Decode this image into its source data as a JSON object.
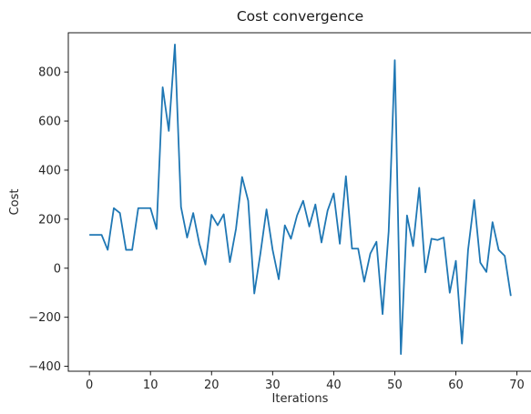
{
  "chart_data": {
    "type": "line",
    "title": "Cost convergence",
    "xlabel": "Iterations",
    "ylabel": "Cost",
    "xlim": [
      -3.45,
      72.45
    ],
    "ylim": [
      -420,
      960
    ],
    "xticks": [
      0,
      10,
      20,
      30,
      40,
      50,
      60,
      70
    ],
    "yticks": [
      -400,
      -200,
      0,
      200,
      400,
      600,
      800
    ],
    "grid": false,
    "line_color": "#1f77b4",
    "series": [
      {
        "x": [
          0,
          1,
          2,
          3,
          4,
          5,
          6,
          7,
          8,
          9,
          10,
          11,
          12,
          13,
          14,
          15,
          16,
          17,
          18,
          19,
          20,
          21,
          22,
          23,
          24,
          25,
          26,
          27,
          28,
          29,
          30,
          31,
          32,
          33,
          34,
          35,
          36,
          37,
          38,
          39,
          40,
          41,
          42,
          43,
          44,
          45,
          46,
          47,
          48,
          49,
          50,
          51,
          52,
          53,
          54,
          55,
          56,
          57,
          58,
          59,
          60,
          61,
          62,
          63,
          64,
          65,
          66,
          67,
          68,
          69
        ],
        "values": [
          136,
          136,
          136,
          75,
          245,
          225,
          75,
          75,
          245,
          245,
          245,
          160,
          738,
          560,
          912,
          250,
          125,
          225,
          100,
          15,
          218,
          175,
          220,
          25,
          160,
          372,
          275,
          -103,
          60,
          240,
          75,
          -45,
          175,
          120,
          215,
          275,
          170,
          260,
          105,
          235,
          305,
          100,
          375,
          80,
          80,
          -55,
          60,
          108,
          -187,
          150,
          848,
          -350,
          215,
          90,
          328,
          -17,
          120,
          115,
          125,
          -100,
          30,
          -307,
          75,
          278,
          23,
          -15,
          188,
          75,
          50,
          -113
        ]
      }
    ]
  }
}
